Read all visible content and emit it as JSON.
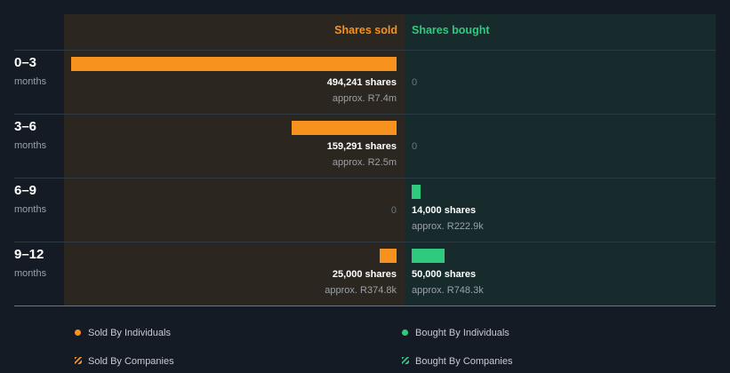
{
  "chart_data": {
    "type": "bar",
    "orientation": "horizontal-diverging",
    "columns": [
      "Shares sold",
      "Shares bought"
    ],
    "categories": [
      {
        "period": "0–3",
        "unit": "months"
      },
      {
        "period": "3–6",
        "unit": "months"
      },
      {
        "period": "6–9",
        "unit": "months"
      },
      {
        "period": "9–12",
        "unit": "months"
      }
    ],
    "series": [
      {
        "name": "Shares sold",
        "color": "#f7921e",
        "values": [
          494241,
          159291,
          0,
          25000
        ],
        "labels": [
          "494,241 shares",
          "159,291 shares",
          "0",
          "25,000 shares"
        ],
        "approx": [
          "approx. R7.4m",
          "approx. R2.5m",
          "",
          "approx. R374.8k"
        ]
      },
      {
        "name": "Shares bought",
        "color": "#2fca7e",
        "values": [
          0,
          0,
          14000,
          50000
        ],
        "labels": [
          "0",
          "0",
          "14,000 shares",
          "50,000 shares"
        ],
        "approx": [
          "",
          "",
          "approx. R222.9k",
          "approx. R748.3k"
        ]
      }
    ],
    "legend": [
      {
        "label": "Sold By Individuals",
        "marker": "dot",
        "color": "#f7921e"
      },
      {
        "label": "Bought By Individuals",
        "marker": "dot",
        "color": "#2fca7e"
      },
      {
        "label": "Sold By Companies",
        "marker": "hatch",
        "color": "#f7921e"
      },
      {
        "label": "Bought By Companies",
        "marker": "hatch",
        "color": "#2fca7e"
      }
    ],
    "legend_position": "bottom",
    "colors": {
      "background": "#151b24",
      "sold_panel": "#2b2620",
      "bought_panel": "#172b2d"
    }
  }
}
